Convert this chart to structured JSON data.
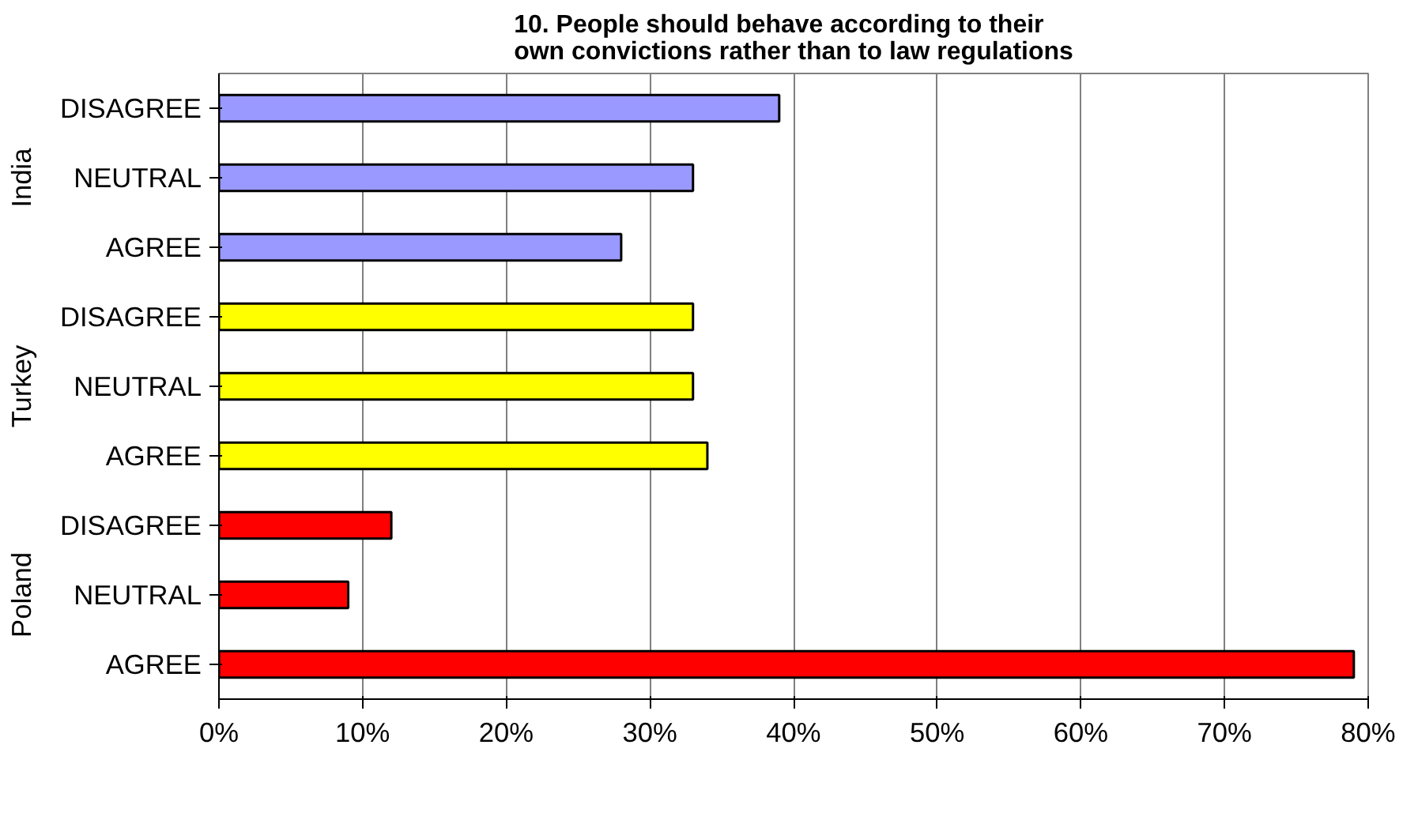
{
  "chart_data": {
    "type": "bar",
    "orientation": "horizontal",
    "title": "10. People should behave according to their own convictions rather than to law regulations",
    "categories": [
      "DISAGREE",
      "NEUTRAL",
      "AGREE",
      "DISAGREE",
      "NEUTRAL",
      "AGREE",
      "DISAGREE",
      "NEUTRAL",
      "AGREE"
    ],
    "series": [
      {
        "color": "#9999ff",
        "values": [
          39,
          33,
          28,
          null,
          null,
          null,
          null,
          null,
          null
        ]
      },
      {
        "color": "#ffff00",
        "values": [
          null,
          null,
          null,
          33,
          33,
          34,
          null,
          null,
          null
        ]
      },
      {
        "color": "#ff0000",
        "values": [
          null,
          null,
          null,
          null,
          null,
          null,
          12,
          9,
          79
        ]
      }
    ],
    "xlim": [
      0,
      80
    ],
    "xticks": [
      {
        "value": 0,
        "label": "0%"
      },
      {
        "value": 10,
        "label": "10%"
      },
      {
        "value": 20,
        "label": "20%"
      },
      {
        "value": 30,
        "label": "30%"
      },
      {
        "value": 40,
        "label": "40%"
      },
      {
        "value": 50,
        "label": "50%"
      },
      {
        "value": 60,
        "label": "60%"
      },
      {
        "value": 70,
        "label": "70%"
      },
      {
        "value": 80,
        "label": "80%"
      }
    ],
    "annotations": [
      "India",
      "Turkey",
      "Poland"
    ],
    "grid": "x"
  }
}
